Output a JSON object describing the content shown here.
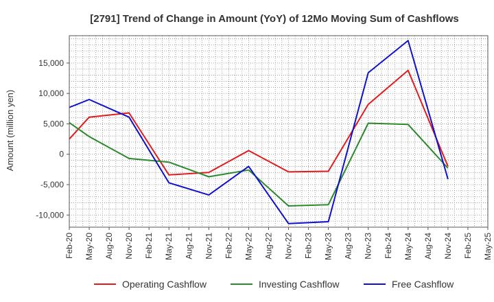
{
  "chart_data": {
    "type": "line",
    "title": "[2791]  Trend of Change in Amount (YoY) of 12Mo Moving Sum of Cashflows",
    "xlabel": "",
    "ylabel": "Amount (million yen)",
    "ylim": [
      -12000,
      19500
    ],
    "yticks": [
      -10000,
      -5000,
      0,
      5000,
      10000,
      15000
    ],
    "ytick_labels": [
      "-10,000",
      "-5,000",
      "0",
      "5,000",
      "10,000",
      "15,000"
    ],
    "categories": [
      "Feb-20",
      "May-20",
      "Aug-20",
      "Nov-20",
      "Feb-21",
      "May-21",
      "Aug-21",
      "Nov-21",
      "Feb-22",
      "May-22",
      "Aug-22",
      "Nov-22",
      "Feb-23",
      "May-23",
      "Aug-23",
      "Nov-23",
      "Feb-24",
      "May-24",
      "Aug-24",
      "Nov-24",
      "Feb-25",
      "May-25"
    ],
    "grid": true,
    "legend_position": "bottom",
    "series": [
      {
        "name": "Operating Cashflow",
        "color": "#e31a1c",
        "values": [
          2500,
          6100,
          null,
          6800,
          null,
          -3400,
          null,
          -3000,
          null,
          600,
          null,
          -2900,
          null,
          -2800,
          null,
          8200,
          null,
          13800,
          null,
          -2000,
          null,
          null
        ]
      },
      {
        "name": "Investing Cashflow",
        "color": "#2a8a2a",
        "values": [
          5200,
          2900,
          null,
          -700,
          null,
          -1300,
          null,
          -3700,
          null,
          -2600,
          null,
          -8500,
          null,
          -8300,
          null,
          5100,
          null,
          4900,
          null,
          -2300,
          null,
          null
        ]
      },
      {
        "name": "Free Cashflow",
        "color": "#1010cc",
        "values": [
          7700,
          9000,
          null,
          6100,
          null,
          -4700,
          null,
          -6700,
          null,
          -2000,
          null,
          -11400,
          null,
          -11100,
          null,
          13400,
          null,
          18700,
          null,
          -4100,
          null,
          null
        ]
      }
    ]
  }
}
